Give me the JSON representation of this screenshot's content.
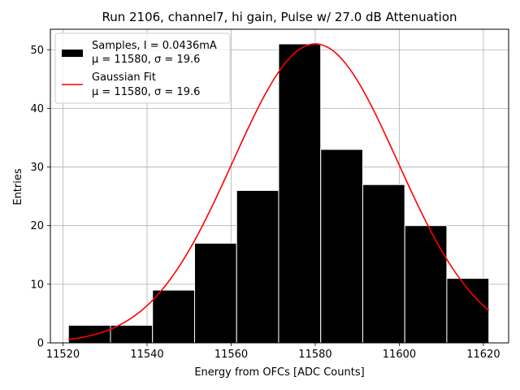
{
  "chart_data": {
    "type": "bar",
    "title": "Run 2106, channel7, hi gain, Pulse w/ 27.0 dB Attenuation",
    "xlabel": "Energy from OFCs [ADC Counts]",
    "ylabel": "Entries",
    "xlim": [
      11517,
      11626
    ],
    "ylim": [
      0,
      53.5
    ],
    "xticks": [
      11520,
      11540,
      11560,
      11580,
      11600,
      11620
    ],
    "yticks": [
      0,
      10,
      20,
      30,
      40,
      50
    ],
    "grid": true,
    "legend_position": "top-left",
    "histogram": {
      "name": "Samples, I = 0.0436mA",
      "stats": "μ = 11580, σ = 19.6",
      "color": "#000000",
      "bin_edges": [
        11521.3,
        11531.3,
        11541.3,
        11551.3,
        11561.3,
        11571.3,
        11581.3,
        11591.3,
        11601.3,
        11611.3,
        11621.3
      ],
      "values": [
        3,
        3,
        9,
        17,
        26,
        51,
        33,
        27,
        20,
        11
      ]
    },
    "fit": {
      "name": "Gaussian Fit",
      "stats": "μ = 11580, σ = 19.6",
      "color": "#ff0000",
      "mu": 11580,
      "sigma": 19.6,
      "amplitude": 51,
      "x_range": [
        11521.3,
        11621.3
      ]
    }
  }
}
